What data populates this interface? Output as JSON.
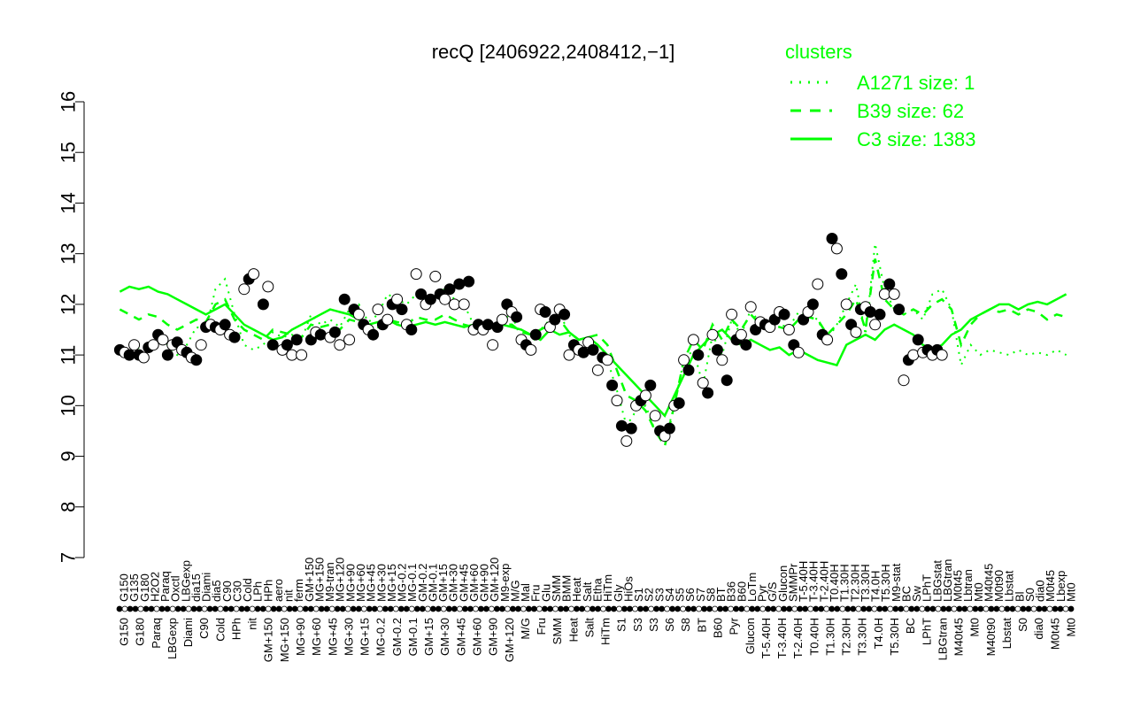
{
  "chart_data": {
    "type": "line",
    "title": "recQ [2406922,2408412,−1]",
    "xlabel": "",
    "ylabel": "",
    "ylim": [
      7,
      16
    ],
    "y_ticks": [
      "7",
      "8",
      "9",
      "10",
      "11",
      "12",
      "13",
      "14",
      "15",
      "16"
    ],
    "grid": false,
    "legend": {
      "title": "clusters",
      "placement": "top-right",
      "entries": [
        {
          "label": "A1271 size: 1",
          "style": "dotted"
        },
        {
          "label": "B39 size: 62",
          "style": "dashed"
        },
        {
          "label": "C3 size: 1383",
          "style": "solid"
        }
      ]
    },
    "colors": {
      "series": "#00ff00",
      "axis": "#000000",
      "point_fill_dark": "#000000",
      "point_fill_light": "#ffffff"
    },
    "x_labels_top": [
      "G150",
      "G135",
      "G180",
      "H2O2",
      "Paraq",
      "Oxctl",
      "LBGexp",
      "dia15",
      "Diami",
      "dia5",
      "C90",
      "C30",
      "Cold",
      "LPh",
      "HPh",
      "aero",
      "nit",
      "ferm",
      "GM+150",
      "MG+150",
      "M9-tran",
      "MG+120",
      "MG+90",
      "MG+60",
      "MG+45",
      "MG+30",
      "MG+15",
      "MG-0.2",
      "MG-0.1",
      "GM-0.2",
      "GM-0.1",
      "GM+15",
      "GM+30",
      "GM+45",
      "GM+60",
      "GM+90",
      "GM+120",
      "M9-exp",
      "M/G",
      "Mal",
      "Fru",
      "Glu",
      "SMM",
      "BMM",
      "Heat",
      "Salt",
      "Etha",
      "HiTm",
      "Gly",
      "HiOs",
      "S1",
      "S2",
      "S3",
      "S4",
      "S5",
      "S6",
      "S7",
      "S8",
      "BT",
      "B36",
      "B60",
      "LoTm",
      "Pyr",
      "G/S",
      "Glucon",
      "SMMPr",
      "T-5.40H",
      "T-3.40H",
      "T-2.40H",
      "T0.40H",
      "T1.30H",
      "T2.30H",
      "T3.30H",
      "T4.0H",
      "T5.30H",
      "M9-stat",
      "BC",
      "Sw",
      "LPhT",
      "LBGstat",
      "LBGtran",
      "M0t45",
      "Lbtran",
      "Mt0",
      "M40t45",
      "M0t90",
      "Lbstat",
      "Bl",
      "S0",
      "dia0",
      "M0t45",
      "Lbexp",
      "Mt0"
    ],
    "x_labels_bottom": [
      "G150",
      "G180",
      "Paraq",
      "LBGexp",
      "Diami",
      "C90",
      "Cold",
      "HPh",
      "nit",
      "GM+150",
      "MG+150",
      "MG+90",
      "MG+60",
      "MG+45",
      "MG+30",
      "MG+15",
      "MG-0.2",
      "GM-0.2",
      "GM-0.1",
      "GM+15",
      "GM+30",
      "GM+45",
      "GM+60",
      "GM+90",
      "GM+120",
      "M/G",
      "Fru",
      "SMM",
      "Heat",
      "Salt",
      "HiTm",
      "S1",
      "S3",
      "S3",
      "S6",
      "S8",
      "BT",
      "B60",
      "Pyr",
      "Glucon",
      "T-5.40H",
      "T-3.40H",
      "T-2.40H",
      "T0.40H",
      "T1.30H",
      "T2.30H",
      "T3.30H",
      "T4.0H",
      "T5.30H",
      "BC",
      "LPhT",
      "LBGtran",
      "M40t45",
      "Mt0",
      "M40t90",
      "Lbstat",
      "S0",
      "dia0",
      "M0t45",
      "Mt0"
    ],
    "x": [
      1,
      2,
      3,
      4,
      5,
      6,
      7,
      8,
      9,
      10,
      11,
      12,
      13,
      14,
      15,
      16,
      17,
      18,
      19,
      20,
      21,
      22,
      23,
      24,
      25,
      26,
      27,
      28,
      29,
      30,
      31,
      32,
      33,
      34,
      35,
      36,
      37,
      38,
      39,
      40,
      41,
      42,
      43,
      44,
      45,
      46,
      47,
      48,
      49,
      50,
      51,
      52,
      53,
      54,
      55,
      56,
      57,
      58,
      59,
      60,
      61,
      62,
      63,
      64,
      65,
      66,
      67,
      68,
      69,
      70,
      71,
      72,
      73,
      74,
      75,
      76,
      77,
      78,
      79,
      80,
      81,
      82,
      83,
      84,
      85,
      86,
      87,
      88,
      89,
      90,
      91,
      92,
      93,
      94,
      95,
      96,
      97,
      98,
      99,
      100
    ],
    "series": [
      {
        "style": "dotted",
        "values": [
          11.1,
          11.0,
          11.15,
          11.1,
          11.3,
          11.2,
          11.0,
          11.2,
          11.55,
          11.5,
          12.3,
          12.5,
          11.8,
          11.2,
          11.1,
          11.2,
          11.45,
          11.35,
          11.4,
          11.3,
          11.8,
          11.6,
          11.7,
          11.55,
          11.9,
          12.0,
          11.65,
          11.8,
          12.2,
          12.1,
          12.0,
          12.2,
          12.1,
          12.2,
          12.3,
          12.1,
          12.0,
          11.6,
          11.55,
          11.6,
          11.7,
          11.8,
          11.3,
          11.2,
          11.5,
          11.7,
          11.85,
          11.4,
          11.1,
          11.2,
          11.1,
          10.9,
          10.3,
          9.6,
          9.9,
          10.0,
          9.5,
          9.3,
          10.0,
          10.9,
          11.1,
          10.4,
          11.4,
          11.0,
          11.7,
          11.4,
          11.9,
          11.6,
          11.7,
          11.6,
          11.55,
          11.85,
          11.8,
          11.7,
          11.3,
          11.6,
          12.0,
          12.4,
          11.4,
          13.2,
          12.3,
          11.9,
          11.8,
          11.9,
          11.7,
          12.2,
          12.3,
          11.9,
          10.8,
          11.2,
          11.0,
          11.1,
          11.05,
          11.0,
          11.1,
          11.0,
          11.05,
          11.0,
          11.1,
          11.0
        ]
      },
      {
        "style": "dashed",
        "values": [
          11.9,
          11.8,
          11.7,
          11.8,
          11.75,
          11.6,
          11.5,
          11.6,
          11.7,
          11.65,
          12.0,
          12.1,
          11.7,
          11.5,
          11.4,
          11.3,
          11.5,
          11.45,
          11.4,
          11.35,
          11.6,
          11.55,
          11.6,
          11.5,
          11.7,
          11.65,
          11.6,
          11.55,
          11.7,
          11.65,
          11.6,
          11.75,
          11.7,
          11.7,
          11.8,
          11.7,
          11.6,
          11.55,
          11.5,
          11.55,
          11.6,
          11.6,
          11.45,
          11.4,
          11.5,
          11.6,
          11.7,
          11.45,
          11.3,
          11.35,
          11.4,
          11.2,
          10.7,
          10.2,
          10.1,
          9.9,
          9.5,
          9.2,
          10.0,
          10.9,
          11.3,
          11.1,
          11.6,
          11.3,
          11.7,
          11.5,
          11.8,
          11.6,
          11.6,
          11.55,
          11.5,
          11.7,
          11.75,
          11.7,
          11.4,
          11.6,
          11.8,
          12.1,
          11.5,
          12.9,
          12.1,
          11.9,
          11.8,
          11.9,
          11.8,
          12.0,
          12.1,
          11.9,
          11.2,
          11.6,
          11.8,
          11.9,
          11.85,
          11.9,
          11.8,
          11.9,
          11.85,
          11.7,
          11.8,
          11.75
        ]
      },
      {
        "style": "solid",
        "values": [
          12.25,
          12.35,
          12.3,
          12.35,
          12.25,
          12.2,
          12.1,
          12.0,
          11.9,
          11.8,
          11.9,
          12.0,
          11.8,
          11.6,
          11.5,
          11.4,
          11.3,
          11.35,
          11.5,
          11.6,
          11.7,
          11.8,
          11.9,
          11.85,
          11.8,
          11.7,
          11.6,
          11.65,
          11.7,
          11.6,
          11.55,
          11.6,
          11.65,
          11.6,
          11.65,
          11.6,
          11.55,
          11.6,
          11.5,
          11.55,
          11.6,
          11.55,
          11.5,
          11.4,
          11.3,
          11.5,
          11.4,
          11.45,
          11.3,
          11.35,
          11.2,
          11.0,
          10.8,
          10.6,
          10.4,
          10.2,
          10.0,
          9.8,
          10.2,
          10.6,
          11.0,
          11.2,
          11.4,
          11.5,
          11.3,
          11.2,
          11.3,
          11.2,
          11.1,
          11.15,
          11.0,
          11.1,
          11.0,
          10.9,
          10.85,
          10.8,
          11.2,
          11.3,
          11.4,
          11.3,
          11.5,
          11.6,
          11.5,
          11.4,
          11.2,
          11.1,
          11.2,
          11.4,
          11.5,
          11.7,
          11.8,
          11.9,
          12.0,
          12.0,
          11.9,
          12.0,
          12.05,
          12.0,
          12.1,
          12.2
        ]
      }
    ],
    "points": [
      [
        1,
        11.1
      ],
      [
        1.5,
        11.05
      ],
      [
        2,
        11.0
      ],
      [
        2.5,
        11.2
      ],
      [
        3,
        11.0
      ],
      [
        3.5,
        10.95
      ],
      [
        4,
        11.15
      ],
      [
        4.5,
        11.2
      ],
      [
        5,
        11.4
      ],
      [
        5.5,
        11.3
      ],
      [
        6,
        11.0
      ],
      [
        6.5,
        11.2
      ],
      [
        7,
        11.25
      ],
      [
        7.5,
        11.1
      ],
      [
        8,
        11.05
      ],
      [
        8.5,
        10.95
      ],
      [
        9,
        10.9
      ],
      [
        9.5,
        11.2
      ],
      [
        10,
        11.55
      ],
      [
        10.5,
        11.6
      ],
      [
        11,
        11.55
      ],
      [
        11.5,
        11.5
      ],
      [
        12,
        11.6
      ],
      [
        12.5,
        11.4
      ],
      [
        13,
        11.35
      ],
      [
        14,
        12.3
      ],
      [
        14.5,
        12.5
      ],
      [
        15,
        12.6
      ],
      [
        16,
        12.0
      ],
      [
        16.5,
        12.35
      ],
      [
        17,
        11.2
      ],
      [
        18,
        11.1
      ],
      [
        18.5,
        11.2
      ],
      [
        19,
        11.0
      ],
      [
        19.5,
        11.3
      ],
      [
        20,
        11.0
      ],
      [
        21,
        11.3
      ],
      [
        21.5,
        11.45
      ],
      [
        22,
        11.4
      ],
      [
        23,
        11.35
      ],
      [
        23.5,
        11.45
      ],
      [
        24,
        11.2
      ],
      [
        24.5,
        12.1
      ],
      [
        25,
        11.3
      ],
      [
        25.5,
        11.9
      ],
      [
        26,
        11.8
      ],
      [
        26.5,
        11.6
      ],
      [
        27,
        11.5
      ],
      [
        27.5,
        11.4
      ],
      [
        28,
        11.9
      ],
      [
        28.5,
        11.6
      ],
      [
        29,
        11.7
      ],
      [
        29.5,
        12.0
      ],
      [
        30,
        12.1
      ],
      [
        30.5,
        11.9
      ],
      [
        31,
        11.6
      ],
      [
        31.5,
        11.5
      ],
      [
        32,
        12.6
      ],
      [
        32.5,
        12.2
      ],
      [
        33,
        12.0
      ],
      [
        33.5,
        12.1
      ],
      [
        34,
        12.55
      ],
      [
        34.5,
        12.2
      ],
      [
        35,
        12.1
      ],
      [
        35.5,
        12.3
      ],
      [
        36,
        12.0
      ],
      [
        36.5,
        12.4
      ],
      [
        37,
        12.0
      ],
      [
        37.5,
        12.45
      ],
      [
        38,
        11.5
      ],
      [
        38.5,
        11.6
      ],
      [
        39,
        11.5
      ],
      [
        39.5,
        11.6
      ],
      [
        40,
        11.2
      ],
      [
        40.5,
        11.55
      ],
      [
        41,
        11.7
      ],
      [
        41.5,
        12.0
      ],
      [
        42,
        11.85
      ],
      [
        42.5,
        11.75
      ],
      [
        43,
        11.3
      ],
      [
        43.5,
        11.2
      ],
      [
        44,
        11.1
      ],
      [
        44.5,
        11.4
      ],
      [
        45,
        11.9
      ],
      [
        45.5,
        11.85
      ],
      [
        46,
        11.55
      ],
      [
        46.5,
        11.7
      ],
      [
        47,
        11.9
      ],
      [
        47.5,
        11.8
      ],
      [
        48,
        11.0
      ],
      [
        48.5,
        11.2
      ],
      [
        49,
        11.1
      ],
      [
        49.5,
        11.05
      ],
      [
        50,
        11.25
      ],
      [
        50.5,
        11.1
      ],
      [
        51,
        10.7
      ],
      [
        51.5,
        10.95
      ],
      [
        52,
        10.9
      ],
      [
        52.5,
        10.4
      ],
      [
        53,
        10.1
      ],
      [
        53.5,
        9.6
      ],
      [
        54,
        9.3
      ],
      [
        54.5,
        9.55
      ],
      [
        55,
        10.0
      ],
      [
        55.5,
        10.1
      ],
      [
        56,
        10.2
      ],
      [
        56.5,
        10.4
      ],
      [
        57,
        9.8
      ],
      [
        57.5,
        9.5
      ],
      [
        58,
        9.4
      ],
      [
        58.5,
        9.55
      ],
      [
        59,
        10.0
      ],
      [
        59.5,
        10.05
      ],
      [
        60,
        10.9
      ],
      [
        60.5,
        10.7
      ],
      [
        61,
        11.3
      ],
      [
        61.5,
        11.0
      ],
      [
        62,
        10.45
      ],
      [
        62.5,
        10.25
      ],
      [
        63,
        11.4
      ],
      [
        63.5,
        11.1
      ],
      [
        64,
        10.9
      ],
      [
        64.5,
        10.5
      ],
      [
        65,
        11.8
      ],
      [
        65.5,
        11.3
      ],
      [
        66,
        11.4
      ],
      [
        66.5,
        11.2
      ],
      [
        67,
        11.95
      ],
      [
        67.5,
        11.5
      ],
      [
        68,
        11.65
      ],
      [
        68.5,
        11.6
      ],
      [
        69,
        11.55
      ],
      [
        69.5,
        11.7
      ],
      [
        70,
        11.85
      ],
      [
        70.5,
        11.8
      ],
      [
        71,
        11.5
      ],
      [
        71.5,
        11.2
      ],
      [
        72,
        11.05
      ],
      [
        72.5,
        11.7
      ],
      [
        73,
        11.85
      ],
      [
        73.5,
        12.0
      ],
      [
        74,
        12.4
      ],
      [
        74.5,
        11.4
      ],
      [
        75,
        11.3
      ],
      [
        75.5,
        13.3
      ],
      [
        76,
        13.1
      ],
      [
        76.5,
        12.6
      ],
      [
        77,
        12.0
      ],
      [
        77.5,
        11.6
      ],
      [
        78,
        11.45
      ],
      [
        78.5,
        11.9
      ],
      [
        79,
        11.95
      ],
      [
        79.5,
        11.85
      ],
      [
        80,
        11.6
      ],
      [
        80.5,
        11.8
      ],
      [
        81,
        12.2
      ],
      [
        81.5,
        12.4
      ],
      [
        82,
        12.2
      ],
      [
        82.5,
        11.9
      ],
      [
        83,
        10.5
      ],
      [
        83.5,
        10.9
      ],
      [
        84,
        11.0
      ],
      [
        84.5,
        11.3
      ],
      [
        85,
        11.05
      ],
      [
        85.5,
        11.1
      ],
      [
        86,
        11.0
      ],
      [
        86.5,
        11.1
      ],
      [
        87,
        11.0
      ]
    ],
    "point_fill_pattern": "alternating"
  }
}
